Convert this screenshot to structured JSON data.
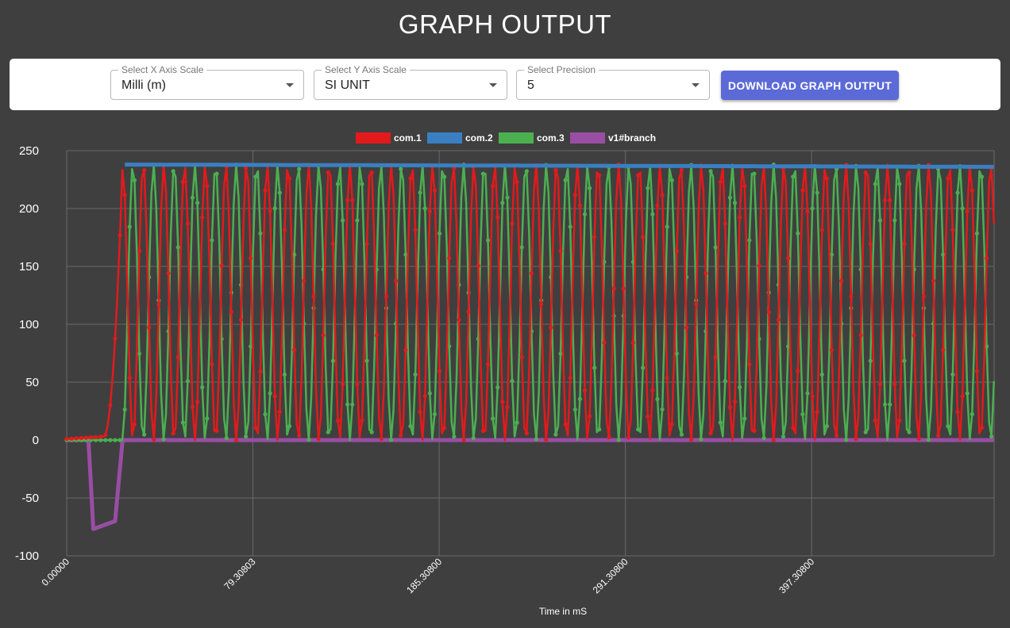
{
  "page": {
    "title": "GRAPH OUTPUT"
  },
  "controls": {
    "x_scale": {
      "label": "Select X Axis Scale",
      "value": "Milli (m)"
    },
    "y_scale": {
      "label": "Select Y Axis Scale",
      "value": "SI UNIT"
    },
    "precision": {
      "label": "Select Precision",
      "value": "5"
    },
    "download_label": "DOWNLOAD GRAPH OUTPUT"
  },
  "colors": {
    "background": "#3f3f3f",
    "button": "#5b6ad6",
    "grid": "#6a6a6a",
    "text": "#ffffff"
  },
  "chart_data": {
    "type": "line",
    "title": "",
    "xlabel": "Time in mS",
    "ylabel": "",
    "xlim": [
      0,
      498
    ],
    "ylim": [
      -100,
      250
    ],
    "yticks": [
      250,
      200,
      150,
      100,
      50,
      0,
      -50,
      -100
    ],
    "xticks": [
      "0.00000",
      "79.30803",
      "185.30800",
      "291.30800",
      "397.30800"
    ],
    "xtick_values": [
      0,
      100,
      200,
      300,
      400
    ],
    "grid": true,
    "legend_position": "top-center",
    "waveform": {
      "startup_end": 30,
      "amplitude": 238,
      "period": 11.1,
      "com2_start": 238,
      "com2_end": 236,
      "v1_min": -77
    },
    "series": [
      {
        "name": "com.1",
        "color": "#e31a1c"
      },
      {
        "name": "com.2",
        "color": "#3a7fc2"
      },
      {
        "name": "com.3",
        "color": "#4caf50"
      },
      {
        "name": "v1#branch",
        "color": "#984ea3"
      }
    ]
  }
}
